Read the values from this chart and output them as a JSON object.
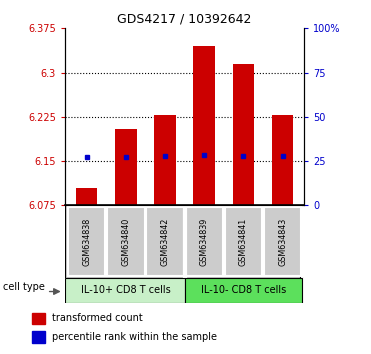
{
  "title": "GDS4217 / 10392642",
  "samples": [
    "GSM634838",
    "GSM634840",
    "GSM634842",
    "GSM634839",
    "GSM634841",
    "GSM634843"
  ],
  "red_values": [
    6.105,
    6.205,
    6.228,
    6.345,
    6.315,
    6.228
  ],
  "blue_values": [
    6.157,
    6.157,
    6.158,
    6.16,
    6.158,
    6.158
  ],
  "ymin": 6.075,
  "ymax": 6.375,
  "yticks_left": [
    6.075,
    6.15,
    6.225,
    6.3,
    6.375
  ],
  "yticks_right": [
    0,
    25,
    50,
    75,
    100
  ],
  "group1_label": "IL-10+ CD8 T cells",
  "group2_label": "IL-10- CD8 T cells",
  "group1_color": "#c8f0c8",
  "group2_color": "#5ce05c",
  "bar_color": "#cc0000",
  "dot_color": "#0000cc",
  "bar_bottom": 6.075,
  "bar_width": 0.55,
  "legend_red": "transformed count",
  "legend_blue": "percentile rank within the sample",
  "cell_type_label": "cell type",
  "background_color": "#ffffff",
  "tick_label_color_left": "#cc0000",
  "tick_label_color_right": "#0000cc",
  "sample_box_color": "#cccccc",
  "sample_box_edge": "#888888"
}
